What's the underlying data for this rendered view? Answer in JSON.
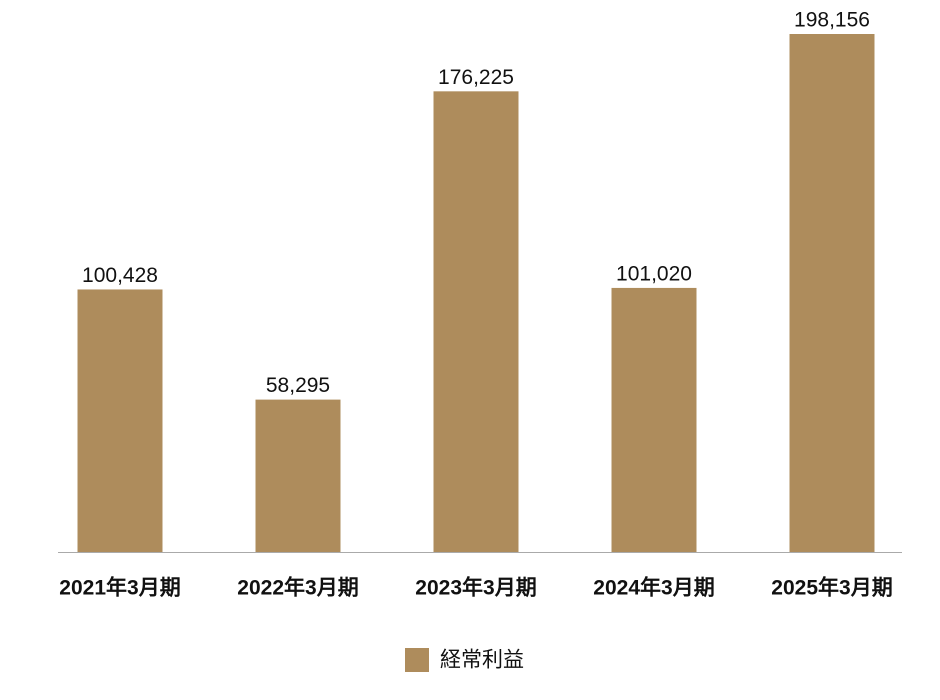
{
  "chart_data": {
    "type": "bar",
    "categories": [
      "2021年3月期",
      "2022年3月期",
      "2023年3月期",
      "2024年3月期",
      "2025年3月期"
    ],
    "series": [
      {
        "name": "経常利益",
        "color": "#ae8c5c",
        "values": [
          100428,
          58295,
          176225,
          101020,
          198156
        ],
        "value_labels": [
          "100,428",
          "58,295",
          "176,225",
          "101,020",
          "198,156"
        ]
      }
    ],
    "legend": "bottom"
  }
}
